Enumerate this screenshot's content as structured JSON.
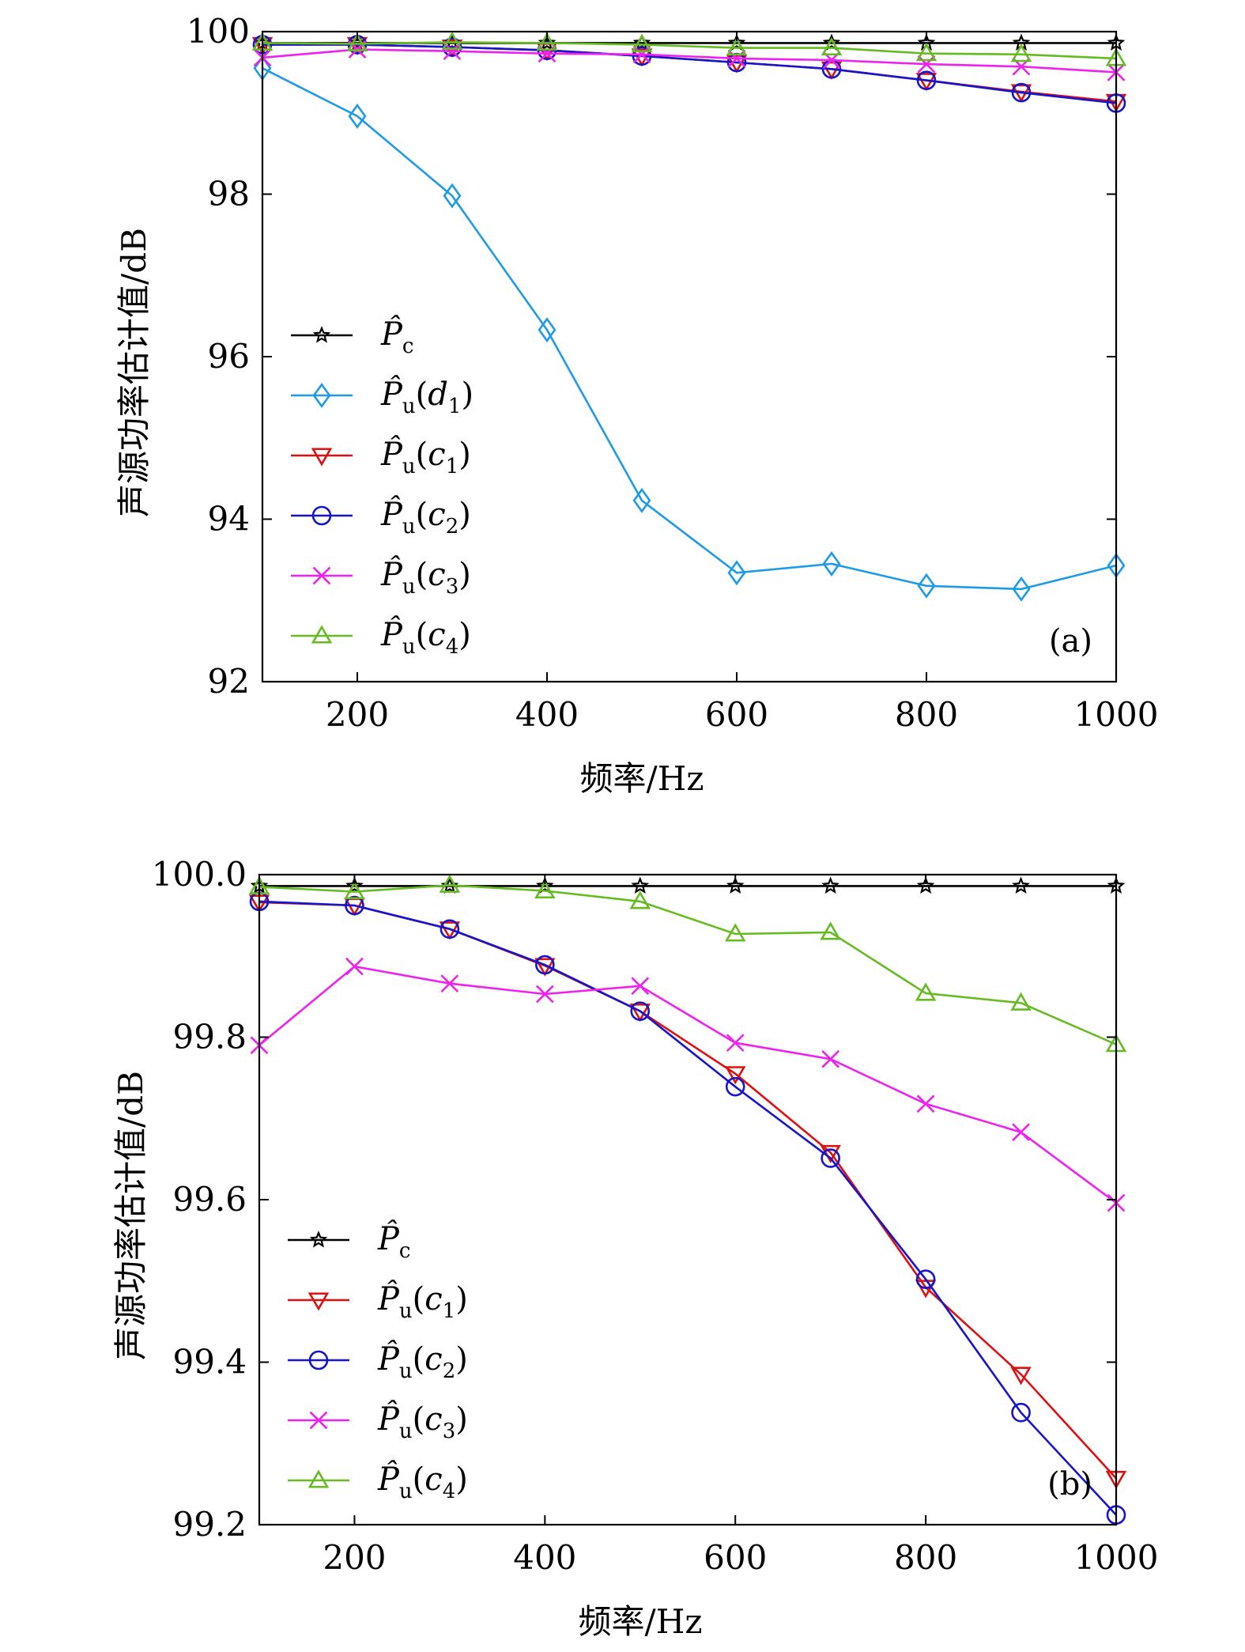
{
  "chart_data": [
    {
      "type": "line",
      "panel_label": "(a)",
      "xlabel": "频率/Hz",
      "ylabel": "声源功率估计值/dB",
      "xlim": [
        100,
        1000
      ],
      "ylim": [
        92,
        100
      ],
      "xticks": [
        200,
        400,
        600,
        800,
        1000
      ],
      "yticks": [
        92,
        94,
        96,
        98,
        100
      ],
      "ytick_labels": [
        "92",
        "94",
        "96",
        "98",
        "100"
      ],
      "legend_position": "left-center",
      "x": [
        100,
        200,
        300,
        400,
        500,
        600,
        700,
        800,
        900,
        1000
      ],
      "series": [
        {
          "name": "P̂c",
          "base": "P̂",
          "sub": "c",
          "arg": "",
          "arg_sub": "",
          "color": "#000000",
          "marker": "star",
          "values": [
            99.86,
            99.86,
            99.86,
            99.86,
            99.86,
            99.86,
            99.86,
            99.86,
            99.86,
            99.86
          ]
        },
        {
          "name": "P̂u(d1)",
          "base": "P̂",
          "sub": "u",
          "arg": "d",
          "arg_sub": "1",
          "color": "#1e9be6",
          "marker": "diamond",
          "values": [
            99.55,
            98.96,
            97.98,
            96.33,
            94.23,
            93.34,
            93.45,
            93.18,
            93.14,
            93.43
          ]
        },
        {
          "name": "P̂u(c1)",
          "base": "P̂",
          "sub": "u",
          "arg": "c",
          "arg_sub": "1",
          "color": "#dd1111",
          "marker": "triangle-down",
          "values": [
            99.84,
            99.84,
            99.81,
            99.77,
            99.7,
            99.62,
            99.54,
            99.4,
            99.26,
            99.14
          ]
        },
        {
          "name": "P̂u(c2)",
          "base": "P̂",
          "sub": "u",
          "arg": "c",
          "arg_sub": "2",
          "color": "#1515cc",
          "marker": "circle",
          "values": [
            99.84,
            99.84,
            99.81,
            99.77,
            99.7,
            99.62,
            99.54,
            99.4,
            99.25,
            99.12
          ]
        },
        {
          "name": "P̂u(c3)",
          "base": "P̂",
          "sub": "u",
          "arg": "c",
          "arg_sub": "3",
          "color": "#ee22ee",
          "marker": "x",
          "values": [
            99.68,
            99.78,
            99.76,
            99.73,
            99.72,
            99.67,
            99.65,
            99.6,
            99.57,
            99.5
          ]
        },
        {
          "name": "P̂u(c4)",
          "base": "P̂",
          "sub": "u",
          "arg": "c",
          "arg_sub": "4",
          "color": "#66bb22",
          "marker": "triangle-up",
          "values": [
            99.86,
            99.85,
            99.87,
            99.86,
            99.84,
            99.8,
            99.8,
            99.73,
            99.72,
            99.67
          ]
        }
      ]
    },
    {
      "type": "line",
      "panel_label": "(b)",
      "xlabel": "频率/Hz",
      "ylabel": "声源功率估计值/dB",
      "xlim": [
        100,
        1000
      ],
      "ylim": [
        99.2,
        100.0
      ],
      "xticks": [
        200,
        400,
        600,
        800,
        1000
      ],
      "yticks": [
        99.2,
        99.4,
        99.6,
        99.8,
        100.0
      ],
      "ytick_labels": [
        "99.2",
        "99.4",
        "99.6",
        "99.8",
        "100.0"
      ],
      "legend_position": "left-lower",
      "x": [
        100,
        200,
        300,
        400,
        500,
        600,
        700,
        800,
        900,
        1000
      ],
      "series": [
        {
          "name": "P̂c",
          "base": "P̂",
          "sub": "c",
          "arg": "",
          "arg_sub": "",
          "color": "#000000",
          "marker": "star",
          "values": [
            99.986,
            99.986,
            99.986,
            99.986,
            99.986,
            99.986,
            99.986,
            99.986,
            99.986,
            99.986
          ]
        },
        {
          "name": "P̂u(c1)",
          "base": "P̂",
          "sub": "u",
          "arg": "c",
          "arg_sub": "1",
          "color": "#dd1111",
          "marker": "triangle-down",
          "values": [
            99.966,
            99.962,
            99.933,
            99.888,
            99.832,
            99.755,
            99.658,
            99.492,
            99.385,
            99.257
          ]
        },
        {
          "name": "P̂u(c2)",
          "base": "P̂",
          "sub": "u",
          "arg": "c",
          "arg_sub": "2",
          "color": "#1515cc",
          "marker": "circle",
          "values": [
            99.967,
            99.962,
            99.933,
            99.889,
            99.832,
            99.739,
            99.651,
            99.502,
            99.338,
            99.212
          ]
        },
        {
          "name": "P̂u(c3)",
          "base": "P̂",
          "sub": "u",
          "arg": "c",
          "arg_sub": "3",
          "color": "#ee22ee",
          "marker": "x",
          "values": [
            99.79,
            99.887,
            99.866,
            99.853,
            99.863,
            99.793,
            99.773,
            99.718,
            99.683,
            99.596
          ]
        },
        {
          "name": "P̂u(c4)",
          "base": "P̂",
          "sub": "u",
          "arg": "c",
          "arg_sub": "4",
          "color": "#66bb22",
          "marker": "triangle-up",
          "values": [
            99.985,
            99.979,
            99.987,
            99.98,
            99.967,
            99.927,
            99.929,
            99.854,
            99.842,
            99.791
          ]
        }
      ]
    }
  ]
}
